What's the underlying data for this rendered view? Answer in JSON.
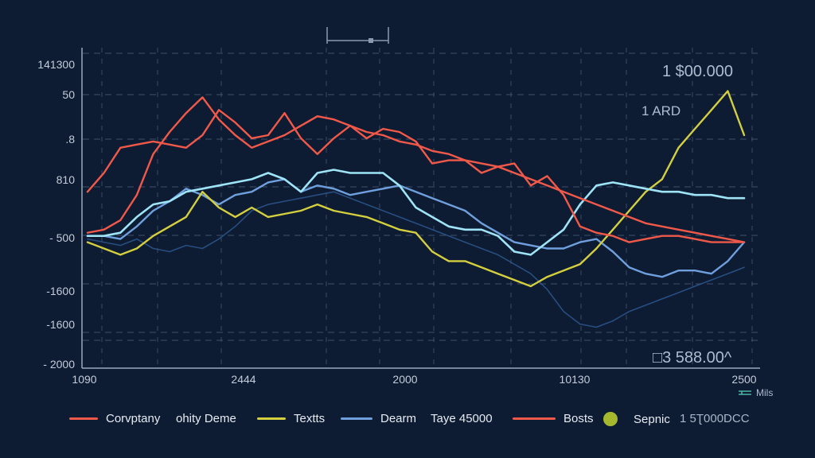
{
  "chart_data": {
    "type": "line",
    "title": "",
    "xlabel": "",
    "ylabel": "",
    "grid": true,
    "legend_position": "bottom",
    "xlim": [
      0,
      100
    ],
    "ylim": [
      0,
      100
    ],
    "x_tick_labels": [
      "1090",
      "2444",
      "2000",
      "10130",
      "2500"
    ],
    "y_tick_labels": [
      "141300",
      "50",
      ".8",
      "810",
      "- 500",
      "-1600",
      "-1600",
      "- 2000"
    ],
    "annotations": {
      "top_right_value": "1 $00.000",
      "right_label": "1 ARD",
      "bottom_right_value": "□3 588.00^",
      "units_label": "Mils"
    },
    "x": [
      0,
      2.5,
      5,
      7.5,
      10,
      12.5,
      15,
      17.5,
      20,
      22.5,
      25,
      27.5,
      30,
      32.5,
      35,
      37.5,
      40,
      42.5,
      45,
      47.5,
      50,
      52.5,
      55,
      57.5,
      60,
      62.5,
      65,
      67.5,
      70,
      72.5,
      75,
      77.5,
      80,
      82.5,
      85,
      87.5,
      90,
      92.5,
      95,
      97.5,
      100
    ],
    "series": [
      {
        "name": "Company",
        "color": "#f0594a",
        "values": [
          56,
          62,
          70,
          71,
          72,
          71,
          70,
          74,
          82,
          78,
          73,
          74,
          81,
          73,
          68,
          73,
          77,
          73,
          76,
          75,
          72,
          65,
          66,
          66,
          62,
          64,
          65,
          58,
          61,
          55,
          45,
          43,
          42,
          40,
          41,
          42,
          42,
          41,
          40,
          40,
          40
        ]
      },
      {
        "name": "ohity Deme",
        "color": "#f0594a",
        "values": [
          43,
          44,
          47,
          55,
          68,
          75,
          81,
          86,
          79,
          74,
          70,
          72,
          74,
          77,
          80,
          79,
          77,
          75,
          74,
          72,
          71,
          69,
          68,
          66,
          65,
          64,
          62,
          60,
          58,
          56,
          54,
          52,
          50,
          48,
          46,
          45,
          44,
          43,
          42,
          41,
          40
        ]
      },
      {
        "name": "Textts",
        "color": "#d4cf3e",
        "values": [
          40,
          38,
          36,
          38,
          42,
          45,
          48,
          56,
          51,
          48,
          51,
          48,
          49,
          50,
          52,
          50,
          49,
          48,
          46,
          44,
          43,
          37,
          34,
          34,
          32,
          30,
          28,
          26,
          29,
          31,
          33,
          38,
          44,
          50,
          56,
          60,
          70,
          76,
          82,
          88,
          74
        ]
      },
      {
        "name": "Dearm",
        "color": "#6f9fdc",
        "values": [
          42,
          42,
          41,
          45,
          50,
          53,
          57,
          55,
          52,
          55,
          56,
          59,
          60,
          56,
          58,
          57,
          55,
          56,
          57,
          58,
          56,
          54,
          52,
          50,
          46,
          43,
          40,
          39,
          38,
          38,
          40,
          41,
          37,
          32,
          30,
          29,
          31,
          31,
          30,
          34,
          40
        ]
      },
      {
        "name": "Taye 45000",
        "color": "#9fe3f7",
        "values": [
          42,
          42,
          43,
          48,
          52,
          53,
          56,
          57,
          58,
          59,
          60,
          62,
          60,
          56,
          62,
          63,
          62,
          62,
          62,
          58,
          51,
          48,
          45,
          44,
          44,
          42,
          37,
          36,
          40,
          44,
          52,
          58,
          59,
          58,
          57,
          56,
          56,
          55,
          55,
          54,
          54
        ]
      },
      {
        "name": "Bosts",
        "color": "#2f5a94",
        "values": [
          41,
          40,
          39,
          41,
          38,
          37,
          39,
          38,
          41,
          45,
          50,
          52,
          53,
          54,
          55,
          56,
          54,
          52,
          50,
          48,
          46,
          44,
          42,
          40,
          38,
          36,
          33,
          30,
          25,
          18,
          14,
          13,
          15,
          18,
          20,
          22,
          24,
          26,
          28,
          30,
          32
        ]
      }
    ]
  },
  "legend": [
    {
      "label": "Corvptany",
      "type": "line",
      "color": "#f0594a"
    },
    {
      "label": "ohity  Deme",
      "type": "text",
      "color": ""
    },
    {
      "label": "Textts",
      "type": "line",
      "color": "#d4cf3e"
    },
    {
      "label": "Dearm",
      "type": "line",
      "color": "#6f9fdc"
    },
    {
      "label": "Taye  45000",
      "type": "text",
      "color": ""
    },
    {
      "label": "Bosts",
      "type": "line",
      "color": "#f0594a"
    },
    {
      "label": "Sepnic",
      "type": "dot",
      "color": "#a6b92e"
    },
    {
      "label": "1 5Ʈ000DCC",
      "type": "text",
      "color": ""
    }
  ]
}
